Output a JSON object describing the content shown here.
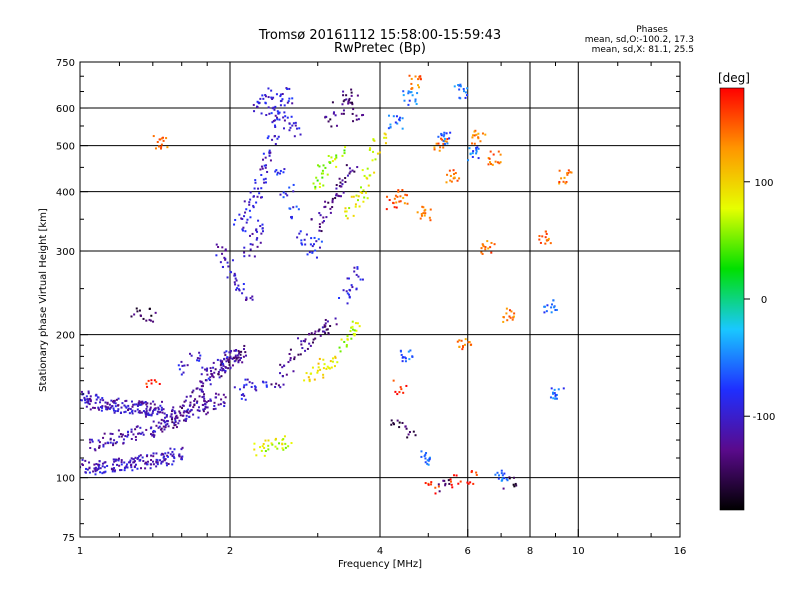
{
  "chart_data": {
    "type": "scatter",
    "title": "Tromsø 20161112 15:58:00-15:59:43",
    "subtitle": "RwPretec (Bp)",
    "xlabel": "Frequency [MHz]",
    "ylabel": "Stationary phase Virtual Height [km]",
    "x_scale": "log",
    "y_scale": "log",
    "xlim": [
      1,
      16
    ],
    "ylim": [
      75,
      750
    ],
    "x_ticks": [
      1,
      2,
      4,
      6,
      8,
      10,
      16
    ],
    "y_ticks": [
      75,
      100,
      200,
      300,
      400,
      500,
      600,
      750
    ],
    "grid": true,
    "color_by": "phase",
    "phase_stats": {
      "title": "Phases",
      "line_o": "mean, sd,O:-100.2, 17.3",
      "line_x": "mean, sd,X:  81.1, 25.5"
    },
    "colorbar": {
      "label": "[deg]",
      "ticks": [
        100,
        0,
        -100
      ],
      "range": [
        -180,
        180
      ],
      "colors": [
        "#000000",
        "#5a0a8c",
        "#1f2fff",
        "#19c8ff",
        "#00e000",
        "#e6ff00",
        "#ff9600",
        "#ff0000"
      ]
    },
    "series": [
      {
        "x": [
          1.02,
          1.05,
          1.08,
          1.12,
          1.16,
          1.2,
          1.24,
          1.28,
          1.32,
          1.36,
          1.4,
          1.43
        ],
        "y": [
          148,
          145,
          144,
          143,
          142,
          141,
          141,
          140,
          140,
          140,
          139,
          140
        ],
        "phase": -110
      },
      {
        "x": [
          1.02,
          1.06,
          1.1,
          1.15,
          1.2,
          1.25,
          1.3,
          1.35,
          1.4,
          1.45,
          1.5,
          1.56
        ],
        "y": [
          106,
          105,
          105,
          106,
          106,
          107,
          107,
          108,
          108,
          109,
          110,
          112
        ],
        "phase": -105
      },
      {
        "x": [
          1.08,
          1.15,
          1.22,
          1.3,
          1.38,
          1.45,
          1.52,
          1.6,
          1.68,
          1.75,
          1.82,
          1.9
        ],
        "y": [
          118,
          120,
          122,
          124,
          126,
          128,
          131,
          134,
          137,
          140,
          142,
          146
        ],
        "phase": -115
      },
      {
        "x": [
          1.5,
          1.58,
          1.65,
          1.72,
          1.8,
          1.88,
          1.95,
          2.0,
          2.05,
          2.1
        ],
        "y": [
          132,
          138,
          145,
          152,
          160,
          168,
          172,
          176,
          180,
          184
        ],
        "phase": -125
      },
      {
        "x": [
          1.6,
          1.7,
          1.8,
          1.9,
          2.0,
          2.1,
          2.2,
          2.3
        ],
        "y": [
          170,
          178,
          165,
          172,
          180,
          150,
          160,
          155
        ],
        "phase": -100
      },
      {
        "x": [
          1.92,
          1.98,
          2.04,
          2.1,
          2.15,
          2.2,
          2.25,
          2.3
        ],
        "y": [
          300,
          280,
          265,
          250,
          240,
          300,
          320,
          340
        ],
        "phase": -105
      },
      {
        "x": [
          2.1,
          2.15,
          2.2,
          2.25,
          2.3,
          2.35,
          2.4,
          2.45,
          2.5
        ],
        "y": [
          340,
          360,
          380,
          400,
          420,
          450,
          480,
          520,
          560
        ],
        "phase": -100
      },
      {
        "x": [
          2.3,
          2.35,
          2.4,
          2.45,
          2.5,
          2.55,
          2.6,
          2.65,
          2.7
        ],
        "y": [
          600,
          620,
          640,
          580,
          600,
          640,
          620,
          560,
          540
        ],
        "phase": -95
      },
      {
        "x": [
          2.5,
          2.6,
          2.7,
          2.8,
          2.9,
          3.0
        ],
        "y": [
          440,
          400,
          360,
          320,
          300,
          310
        ],
        "phase": -85
      },
      {
        "x": [
          2.5,
          2.6,
          2.7,
          2.8,
          2.9,
          3.0,
          3.1,
          3.2
        ],
        "y": [
          160,
          170,
          180,
          190,
          195,
          200,
          205,
          210
        ],
        "phase": -130
      },
      {
        "x": [
          3.0,
          3.1,
          3.2,
          3.3,
          3.4,
          3.5
        ],
        "y": [
          340,
          360,
          380,
          400,
          420,
          440
        ],
        "phase": -130
      },
      {
        "x": [
          3.2,
          3.3,
          3.4,
          3.5,
          3.6
        ],
        "y": [
          560,
          600,
          640,
          620,
          580
        ],
        "phase": -135
      },
      {
        "x": [
          3.4,
          3.5,
          3.6
        ],
        "y": [
          240,
          255,
          270
        ],
        "phase": -95
      },
      {
        "x": [
          2.9,
          3.0,
          3.1,
          3.2
        ],
        "y": [
          165,
          168,
          172,
          176
        ],
        "phase": 90
      },
      {
        "x": [
          3.5,
          3.6,
          3.7,
          3.8,
          3.9,
          4.0
        ],
        "y": [
          360,
          380,
          400,
          440,
          480,
          520
        ],
        "phase": 80
      },
      {
        "x": [
          3.4,
          3.5,
          3.6
        ],
        "y": [
          190,
          200,
          210
        ],
        "phase": 70
      },
      {
        "x": [
          2.3,
          2.4,
          2.5,
          2.6
        ],
        "y": [
          115,
          117,
          118,
          119
        ],
        "phase": 75
      },
      {
        "x": [
          3.0,
          3.1,
          3.2,
          3.3
        ],
        "y": [
          420,
          440,
          460,
          480
        ],
        "phase": 60
      },
      {
        "x": [
          1.45,
          4.7,
          5.3,
          6.3,
          6.6,
          6.8,
          8.6,
          9.4,
          4.4,
          4.9,
          5.6,
          5.9,
          7.2
        ],
        "y": [
          510,
          680,
          500,
          520,
          305,
          470,
          320,
          430,
          390,
          360,
          430,
          190,
          220
        ],
        "phase": 140
      },
      {
        "x": [
          4.3,
          4.6,
          5.4,
          5.8,
          6.2,
          7.0,
          8.8,
          9.1,
          4.5,
          5.0
        ],
        "y": [
          560,
          630,
          520,
          650,
          480,
          100,
          230,
          150,
          180,
          110
        ],
        "phase": -60
      },
      {
        "x": [
          1.4,
          4.2,
          4.4,
          5.1,
          5.7,
          6.1
        ],
        "y": [
          160,
          380,
          155,
          95,
          98,
          100
        ],
        "phase": 170
      },
      {
        "x": [
          1.3,
          1.4,
          4.3,
          4.6,
          5.4,
          7.3
        ],
        "y": [
          220,
          220,
          130,
          125,
          96,
          98
        ],
        "phase": -150
      }
    ]
  }
}
